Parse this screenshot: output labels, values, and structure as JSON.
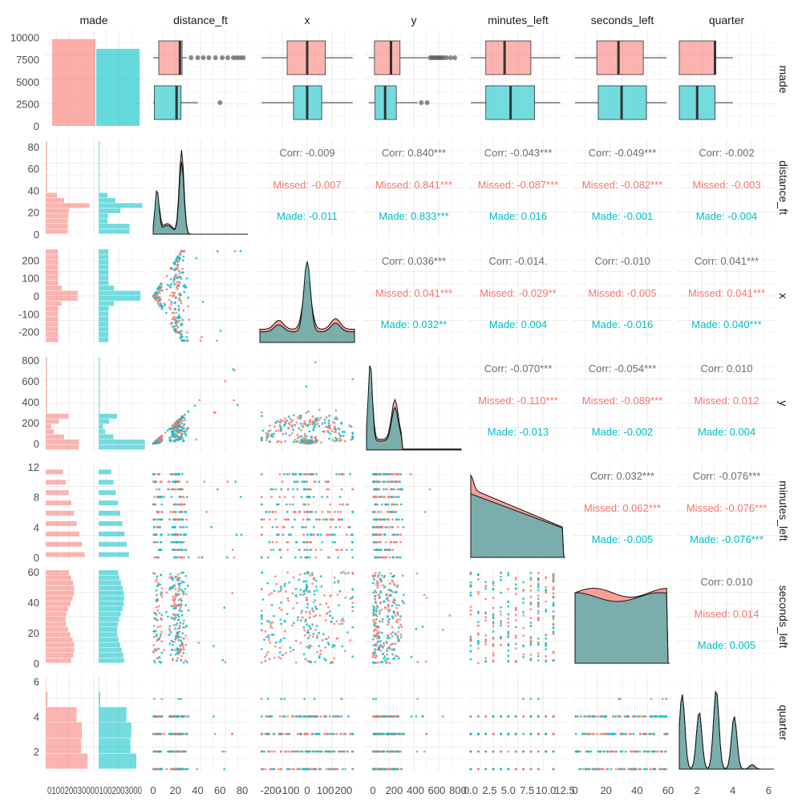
{
  "chart_data": {
    "type": "pairs",
    "variables": [
      "made",
      "distance_ft",
      "x",
      "y",
      "minutes_left",
      "seconds_left",
      "quarter"
    ],
    "groups": [
      "Missed",
      "Made"
    ],
    "colors": {
      "Missed": "#F8766D",
      "Made": "#00BFC4",
      "overlap": "#6BAFAE",
      "corr_text": "#6e6e6e"
    },
    "grid": true,
    "made_counts": {
      "categories": [
        "Missed",
        "Made"
      ],
      "values": [
        9800,
        8700
      ],
      "ylim": [
        0,
        10500
      ]
    },
    "tick_labels": {
      "made_y": [
        "10000",
        "7500",
        "5000",
        "2500",
        "0"
      ],
      "distance_ft": [
        "0",
        "20",
        "40",
        "60",
        "80"
      ],
      "x": [
        "-200",
        "-100",
        "0",
        "100",
        "200"
      ],
      "y": [
        "0",
        "200",
        "400",
        "600",
        "800"
      ],
      "minutes_left_y": [
        "12",
        "8",
        "4",
        "0"
      ],
      "minutes_left_x": [
        "0.0",
        "2.5",
        "5.0",
        "7.5",
        "10.0",
        "12.5"
      ],
      "seconds_left": [
        "0",
        "20",
        "40",
        "60"
      ],
      "quarter_y": [
        "6",
        "4",
        "2"
      ],
      "quarter_x": [
        "2",
        "4",
        "6"
      ],
      "made_x": "0100200300001002003000"
    },
    "boxplots": [
      {
        "var": "distance_ft",
        "Missed": {
          "q1": 5,
          "med": 24,
          "q3": 26,
          "whisk_lo": 0,
          "whisk_hi": 30,
          "outliers": [
            34,
            40,
            45,
            50,
            56,
            62,
            67,
            72,
            75,
            78,
            81
          ]
        },
        "Made": {
          "q1": 1,
          "med": 21,
          "q3": 25,
          "whisk_lo": 0,
          "whisk_hi": 40,
          "outliers": [
            60
          ]
        }
      },
      {
        "var": "x",
        "Missed": {
          "q1": -110,
          "med": 0,
          "q3": 100,
          "whisk_lo": -250,
          "whisk_hi": 250,
          "outliers": []
        },
        "Made": {
          "q1": -75,
          "med": 0,
          "q3": 80,
          "whisk_lo": -250,
          "whisk_hi": 250,
          "outliers": []
        }
      },
      {
        "var": "y",
        "Missed": {
          "q1": 15,
          "med": 170,
          "q3": 255,
          "whisk_lo": -40,
          "whisk_hi": 520,
          "outliers": [
            540,
            560,
            580,
            600,
            620,
            640,
            660,
            690,
            730,
            770
          ]
        },
        "Made": {
          "q1": 20,
          "med": 115,
          "q3": 220,
          "whisk_lo": -40,
          "whisk_hi": 420,
          "outliers": [
            455,
            510
          ]
        }
      },
      {
        "var": "minutes_left",
        "Missed": {
          "q1": 2,
          "med": 4.5,
          "q3": 8,
          "whisk_lo": 0,
          "whisk_hi": 11.9,
          "outliers": []
        },
        "Made": {
          "q1": 2,
          "med": 5.3,
          "q3": 8.5,
          "whisk_lo": 0,
          "whisk_hi": 11.9,
          "outliers": []
        }
      },
      {
        "var": "seconds_left",
        "Missed": {
          "q1": 14,
          "med": 28,
          "q3": 44,
          "whisk_lo": 0,
          "whisk_hi": 59,
          "outliers": []
        },
        "Made": {
          "q1": 15,
          "med": 30,
          "q3": 46,
          "whisk_lo": 0,
          "whisk_hi": 59,
          "outliers": []
        }
      },
      {
        "var": "quarter",
        "Missed": {
          "q1": 1,
          "med": 3,
          "q3": 3,
          "whisk_lo": 1,
          "whisk_hi": 4,
          "outliers": []
        },
        "Made": {
          "q1": 1,
          "med": 2,
          "q3": 3,
          "whisk_lo": 1,
          "whisk_hi": 4,
          "outliers": []
        }
      }
    ],
    "correlations": [
      {
        "row": "distance_ft",
        "col": "x",
        "corr": "Corr: -0.009",
        "missed": "Missed: -0.007",
        "made": "Made: -0.011"
      },
      {
        "row": "distance_ft",
        "col": "y",
        "corr": "Corr: 0.840***",
        "missed": "Missed: 0.841***",
        "made": "Made: 0.833***"
      },
      {
        "row": "distance_ft",
        "col": "minutes_left",
        "corr": "Corr: -0.043***",
        "missed": "Missed: -0.087***",
        "made": "Made: 0.016"
      },
      {
        "row": "distance_ft",
        "col": "seconds_left",
        "corr": "Corr: -0.049***",
        "missed": "Missed: -0.082***",
        "made": "Made: -0.001"
      },
      {
        "row": "distance_ft",
        "col": "quarter",
        "corr": "Corr: -0.002",
        "missed": "Missed: -0.003",
        "made": "Made: -0.004"
      },
      {
        "row": "x",
        "col": "y",
        "corr": "Corr: 0.036***",
        "missed": "Missed: 0.041***",
        "made": "Made: 0.032**"
      },
      {
        "row": "x",
        "col": "minutes_left",
        "corr": "Corr: -0.014.",
        "missed": "Missed: -0.029**",
        "made": "Made: 0.004"
      },
      {
        "row": "x",
        "col": "seconds_left",
        "corr": "Corr: -0.010",
        "missed": "Missed: -0.005",
        "made": "Made: -0.016"
      },
      {
        "row": "x",
        "col": "quarter",
        "corr": "Corr: 0.041***",
        "missed": "Missed: 0.041***",
        "made": "Made: 0.040***"
      },
      {
        "row": "y",
        "col": "minutes_left",
        "corr": "Corr: -0.070***",
        "missed": "Missed: -0.110***",
        "made": "Made: -0.013"
      },
      {
        "row": "y",
        "col": "seconds_left",
        "corr": "Corr: -0.054***",
        "missed": "Missed: -0.089***",
        "made": "Made: -0.002"
      },
      {
        "row": "y",
        "col": "quarter",
        "corr": "Corr: 0.010",
        "missed": "Missed: 0.012",
        "made": "Made: 0.004"
      },
      {
        "row": "minutes_left",
        "col": "seconds_left",
        "corr": "Corr: 0.032***",
        "missed": "Missed: 0.062***",
        "made": "Made: -0.005"
      },
      {
        "row": "minutes_left",
        "col": "quarter",
        "corr": "Corr: -0.076***",
        "missed": "Missed: -0.076***",
        "made": "Made: -0.076***"
      },
      {
        "row": "seconds_left",
        "col": "quarter",
        "corr": "Corr: 0.010",
        "missed": "Missed: 0.014",
        "made": "Made: 0.005"
      }
    ]
  }
}
